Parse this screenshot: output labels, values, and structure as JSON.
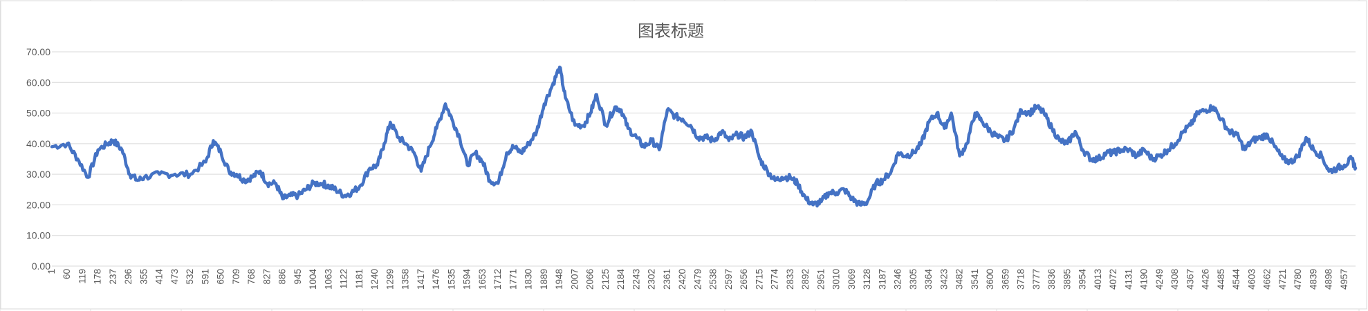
{
  "chart_data": {
    "type": "line",
    "title": "图表标题",
    "xlabel": "",
    "ylabel": "",
    "x_range": [
      1,
      5000
    ],
    "x_tick_start": 1,
    "x_tick_step": 59,
    "y_ticks": [
      "0.00",
      "10.00",
      "20.00",
      "30.00",
      "40.00",
      "50.00",
      "60.00",
      "70.00"
    ],
    "ylim": [
      0,
      70
    ],
    "grid": "horizontal",
    "legend": "none",
    "series": [
      {
        "color": "#4472C4",
        "points": [
          [
            1,
            39
          ],
          [
            60,
            40
          ],
          [
            100,
            35
          ],
          [
            140,
            29
          ],
          [
            178,
            38
          ],
          [
            215,
            40
          ],
          [
            237,
            41
          ],
          [
            270,
            38
          ],
          [
            300,
            30
          ],
          [
            330,
            28
          ],
          [
            355,
            29
          ],
          [
            414,
            30
          ],
          [
            473,
            30
          ],
          [
            532,
            30
          ],
          [
            591,
            34
          ],
          [
            620,
            41
          ],
          [
            650,
            37
          ],
          [
            680,
            31
          ],
          [
            709,
            30
          ],
          [
            740,
            28
          ],
          [
            768,
            29
          ],
          [
            800,
            31
          ],
          [
            827,
            27
          ],
          [
            860,
            27
          ],
          [
            886,
            22
          ],
          [
            915,
            23
          ],
          [
            945,
            23
          ],
          [
            975,
            25
          ],
          [
            1004,
            27
          ],
          [
            1040,
            27
          ],
          [
            1063,
            26
          ],
          [
            1090,
            25
          ],
          [
            1122,
            23
          ],
          [
            1150,
            24
          ],
          [
            1181,
            26
          ],
          [
            1220,
            32
          ],
          [
            1250,
            33
          ],
          [
            1275,
            40
          ],
          [
            1299,
            47
          ],
          [
            1330,
            42
          ],
          [
            1358,
            40
          ],
          [
            1390,
            37
          ],
          [
            1417,
            31
          ],
          [
            1450,
            39
          ],
          [
            1476,
            45
          ],
          [
            1510,
            53
          ],
          [
            1535,
            48
          ],
          [
            1565,
            42
          ],
          [
            1594,
            33
          ],
          [
            1625,
            37
          ],
          [
            1653,
            34
          ],
          [
            1680,
            28
          ],
          [
            1712,
            27
          ],
          [
            1745,
            37
          ],
          [
            1771,
            39
          ],
          [
            1800,
            37
          ],
          [
            1830,
            40
          ],
          [
            1860,
            44
          ],
          [
            1889,
            53
          ],
          [
            1920,
            59
          ],
          [
            1948,
            65
          ],
          [
            1970,
            55
          ],
          [
            2007,
            46
          ],
          [
            2040,
            46
          ],
          [
            2066,
            50
          ],
          [
            2090,
            56
          ],
          [
            2125,
            46
          ],
          [
            2160,
            52
          ],
          [
            2184,
            51
          ],
          [
            2210,
            45
          ],
          [
            2243,
            42
          ],
          [
            2270,
            39
          ],
          [
            2302,
            41
          ],
          [
            2330,
            38
          ],
          [
            2361,
            51
          ],
          [
            2390,
            49
          ],
          [
            2420,
            48
          ],
          [
            2450,
            46
          ],
          [
            2479,
            42
          ],
          [
            2510,
            42
          ],
          [
            2538,
            41
          ],
          [
            2570,
            44
          ],
          [
            2597,
            41
          ],
          [
            2630,
            43
          ],
          [
            2656,
            42
          ],
          [
            2685,
            44
          ],
          [
            2715,
            35
          ],
          [
            2745,
            31
          ],
          [
            2774,
            28
          ],
          [
            2800,
            29
          ],
          [
            2833,
            29
          ],
          [
            2860,
            27
          ],
          [
            2892,
            22
          ],
          [
            2920,
            20
          ],
          [
            2951,
            21
          ],
          [
            2980,
            24
          ],
          [
            3010,
            24
          ],
          [
            3040,
            25
          ],
          [
            3069,
            22
          ],
          [
            3100,
            20
          ],
          [
            3128,
            21
          ],
          [
            3160,
            27
          ],
          [
            3187,
            28
          ],
          [
            3220,
            31
          ],
          [
            3246,
            37
          ],
          [
            3275,
            36
          ],
          [
            3305,
            37
          ],
          [
            3335,
            40
          ],
          [
            3364,
            47
          ],
          [
            3395,
            50
          ],
          [
            3423,
            45
          ],
          [
            3450,
            50
          ],
          [
            3482,
            36
          ],
          [
            3510,
            40
          ],
          [
            3541,
            50
          ],
          [
            3570,
            47
          ],
          [
            3600,
            44
          ],
          [
            3630,
            42
          ],
          [
            3659,
            41
          ],
          [
            3690,
            45
          ],
          [
            3718,
            51
          ],
          [
            3750,
            50
          ],
          [
            3777,
            52
          ],
          [
            3805,
            50
          ],
          [
            3836,
            45
          ],
          [
            3865,
            41
          ],
          [
            3895,
            40
          ],
          [
            3925,
            44
          ],
          [
            3954,
            38
          ],
          [
            3985,
            35
          ],
          [
            4013,
            35
          ],
          [
            4045,
            37
          ],
          [
            4072,
            37
          ],
          [
            4100,
            38
          ],
          [
            4131,
            38
          ],
          [
            4160,
            36
          ],
          [
            4190,
            38
          ],
          [
            4220,
            35
          ],
          [
            4249,
            36
          ],
          [
            4280,
            38
          ],
          [
            4308,
            40
          ],
          [
            4340,
            44
          ],
          [
            4367,
            46
          ],
          [
            4395,
            50
          ],
          [
            4426,
            51
          ],
          [
            4455,
            52
          ],
          [
            4485,
            48
          ],
          [
            4515,
            44
          ],
          [
            4544,
            43
          ],
          [
            4575,
            38
          ],
          [
            4603,
            41
          ],
          [
            4635,
            42
          ],
          [
            4662,
            43
          ],
          [
            4690,
            39
          ],
          [
            4721,
            35
          ],
          [
            4750,
            34
          ],
          [
            4780,
            36
          ],
          [
            4810,
            42
          ],
          [
            4839,
            38
          ],
          [
            4870,
            36
          ],
          [
            4898,
            31
          ],
          [
            4930,
            32
          ],
          [
            4957,
            33
          ],
          [
            4985,
            35
          ],
          [
            5000,
            32
          ]
        ]
      }
    ]
  }
}
